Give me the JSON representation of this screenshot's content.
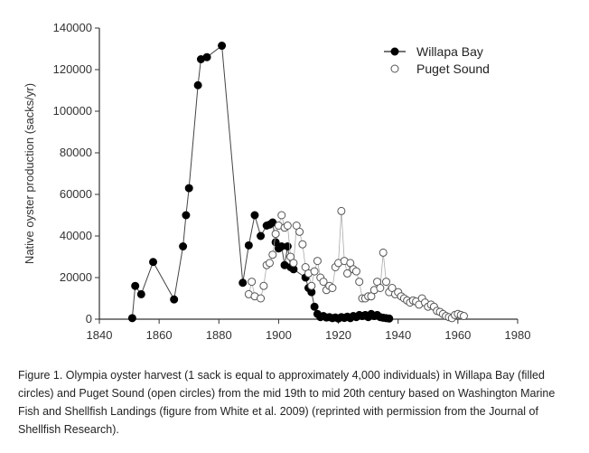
{
  "caption": "Figure 1. Olympia oyster harvest (1 sack is equal to approximately 4,000 individuals) in Willapa Bay (filled circles) and Puget Sound (open circles) from the mid 19th to mid 20th century based on Washington Marine Fish and Shellfish Landings (figure from White et al. 2009) (reprinted with permission from the Journal of Shellfish Research).",
  "chart_data": {
    "type": "scatter",
    "title": "",
    "xlabel": "",
    "ylabel": "Native oyster production (sacks/yr)",
    "xlim": [
      1840,
      1980
    ],
    "ylim": [
      0,
      140000
    ],
    "xticks": [
      1840,
      1860,
      1880,
      1900,
      1920,
      1940,
      1960,
      1980
    ],
    "yticks": [
      0,
      20000,
      40000,
      60000,
      80000,
      100000,
      120000,
      140000
    ],
    "grid": false,
    "legend_position": "top-right",
    "series": [
      {
        "name": "Willapa Bay",
        "marker": "filled-circle",
        "color": "#000000",
        "points": [
          [
            1851,
            500
          ],
          [
            1852,
            16000
          ],
          [
            1854,
            12000
          ],
          [
            1858,
            27500
          ],
          [
            1865,
            9500
          ],
          [
            1868,
            35000
          ],
          [
            1869,
            50000
          ],
          [
            1870,
            63000
          ],
          [
            1873,
            112500
          ],
          [
            1874,
            125000
          ],
          [
            1876,
            126000
          ],
          [
            1881,
            131500
          ],
          [
            1888,
            17500
          ],
          [
            1890,
            35500
          ],
          [
            1892,
            50000
          ],
          [
            1894,
            40000
          ],
          [
            1896,
            45000
          ],
          [
            1897,
            45500
          ],
          [
            1898,
            46500
          ],
          [
            1899,
            37000
          ],
          [
            1900,
            34000
          ],
          [
            1901,
            35000
          ],
          [
            1902,
            26000
          ],
          [
            1903,
            35000
          ],
          [
            1904,
            25000
          ],
          [
            1905,
            24000
          ],
          [
            1909,
            20000
          ],
          [
            1910,
            15000
          ],
          [
            1911,
            13000
          ],
          [
            1912,
            6000
          ],
          [
            1913,
            2500
          ],
          [
            1914,
            1000
          ],
          [
            1915,
            1500
          ],
          [
            1916,
            800
          ],
          [
            1917,
            1000
          ],
          [
            1918,
            500
          ],
          [
            1919,
            800
          ],
          [
            1920,
            300
          ],
          [
            1921,
            1000
          ],
          [
            1922,
            600
          ],
          [
            1923,
            1200
          ],
          [
            1924,
            500
          ],
          [
            1925,
            1500
          ],
          [
            1926,
            1000
          ],
          [
            1927,
            2000
          ],
          [
            1928,
            1500
          ],
          [
            1929,
            2000
          ],
          [
            1930,
            1000
          ],
          [
            1931,
            2500
          ],
          [
            1932,
            1500
          ],
          [
            1933,
            2000
          ],
          [
            1934,
            1000
          ],
          [
            1935,
            700
          ],
          [
            1936,
            500
          ],
          [
            1937,
            300
          ]
        ]
      },
      {
        "name": "Puget Sound",
        "marker": "open-circle",
        "color": "#000000",
        "points": [
          [
            1890,
            12000
          ],
          [
            1891,
            18000
          ],
          [
            1892,
            11000
          ],
          [
            1894,
            10000
          ],
          [
            1895,
            16000
          ],
          [
            1896,
            26000
          ],
          [
            1897,
            27000
          ],
          [
            1898,
            31000
          ],
          [
            1899,
            41000
          ],
          [
            1900,
            45000
          ],
          [
            1901,
            50000
          ],
          [
            1902,
            44000
          ],
          [
            1903,
            45000
          ],
          [
            1904,
            30000
          ],
          [
            1905,
            27000
          ],
          [
            1906,
            45000
          ],
          [
            1907,
            42000
          ],
          [
            1908,
            36000
          ],
          [
            1909,
            25000
          ],
          [
            1910,
            22000
          ],
          [
            1911,
            16000
          ],
          [
            1912,
            23000
          ],
          [
            1913,
            28000
          ],
          [
            1914,
            20000
          ],
          [
            1915,
            18000
          ],
          [
            1916,
            14000
          ],
          [
            1917,
            16000
          ],
          [
            1918,
            15000
          ],
          [
            1919,
            25000
          ],
          [
            1920,
            27000
          ],
          [
            1921,
            52000
          ],
          [
            1922,
            28000
          ],
          [
            1923,
            22000
          ],
          [
            1924,
            27000
          ],
          [
            1925,
            24000
          ],
          [
            1926,
            23000
          ],
          [
            1927,
            18000
          ],
          [
            1928,
            10000
          ],
          [
            1929,
            10000
          ],
          [
            1930,
            11000
          ],
          [
            1931,
            11000
          ],
          [
            1932,
            14000
          ],
          [
            1933,
            18000
          ],
          [
            1934,
            15000
          ],
          [
            1935,
            32000
          ],
          [
            1936,
            18000
          ],
          [
            1937,
            13000
          ],
          [
            1938,
            15000
          ],
          [
            1939,
            12000
          ],
          [
            1940,
            13000
          ],
          [
            1941,
            11000
          ],
          [
            1942,
            10000
          ],
          [
            1943,
            9000
          ],
          [
            1944,
            8000
          ],
          [
            1945,
            9000
          ],
          [
            1946,
            8500
          ],
          [
            1947,
            7000
          ],
          [
            1948,
            10000
          ],
          [
            1949,
            8000
          ],
          [
            1950,
            6000
          ],
          [
            1951,
            7000
          ],
          [
            1952,
            6000
          ],
          [
            1953,
            4000
          ],
          [
            1954,
            3500
          ],
          [
            1955,
            2500
          ],
          [
            1956,
            1500
          ],
          [
            1957,
            1000
          ],
          [
            1958,
            500
          ],
          [
            1959,
            2000
          ],
          [
            1960,
            2500
          ],
          [
            1961,
            2000
          ],
          [
            1962,
            1500
          ]
        ]
      }
    ]
  }
}
